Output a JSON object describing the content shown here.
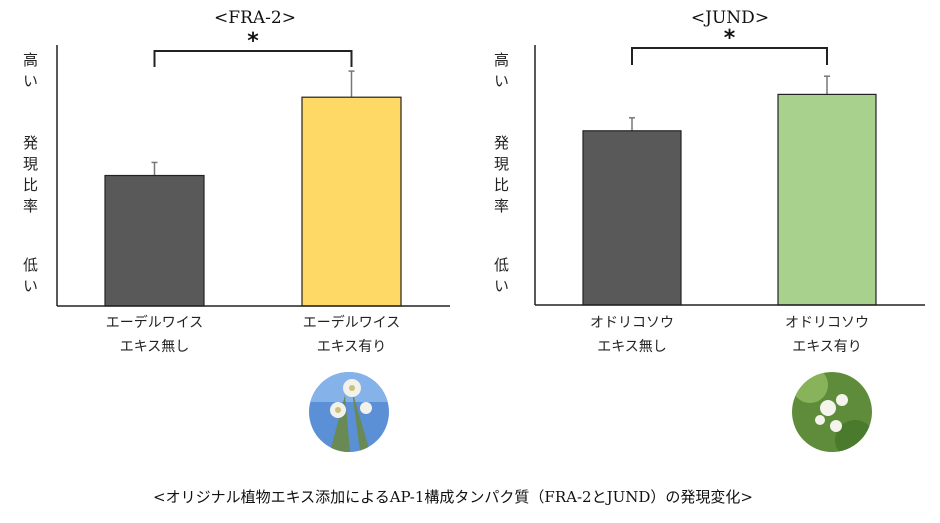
{
  "chart_data": [
    {
      "type": "bar",
      "title": "<FRA-2>",
      "ylabel_high": "高い",
      "ylabel_mid": "発現比率",
      "ylabel_low": "低い",
      "ylim": [
        0,
        100
      ],
      "grid": false,
      "categories": [
        [
          "エーデルワイス",
          "エキス無し"
        ],
        [
          "エーデルワイス",
          "エキス有り"
        ]
      ],
      "values": [
        50,
        80
      ],
      "error_upper": [
        5,
        10
      ],
      "colors": [
        "#595959",
        "#FFD966"
      ],
      "significance": "*",
      "image": "edelweiss-photo"
    },
    {
      "type": "bar",
      "title": "<JUND>",
      "ylabel_high": "高い",
      "ylabel_mid": "発現比率",
      "ylabel_low": "低い",
      "ylim": [
        0,
        100
      ],
      "grid": false,
      "categories": [
        [
          "オドリコソウ",
          "エキス無し"
        ],
        [
          "オドリコソウ",
          "エキス有り"
        ]
      ],
      "values": [
        67,
        81
      ],
      "error_upper": [
        5,
        7
      ],
      "colors": [
        "#595959",
        "#A9D18E"
      ],
      "significance": "*",
      "image": "odorikosou-photo"
    }
  ],
  "caption": "<オリジナル植物エキス添加によるAP-1構成タンパク質（FRA-2とJUND）の発現変化>"
}
